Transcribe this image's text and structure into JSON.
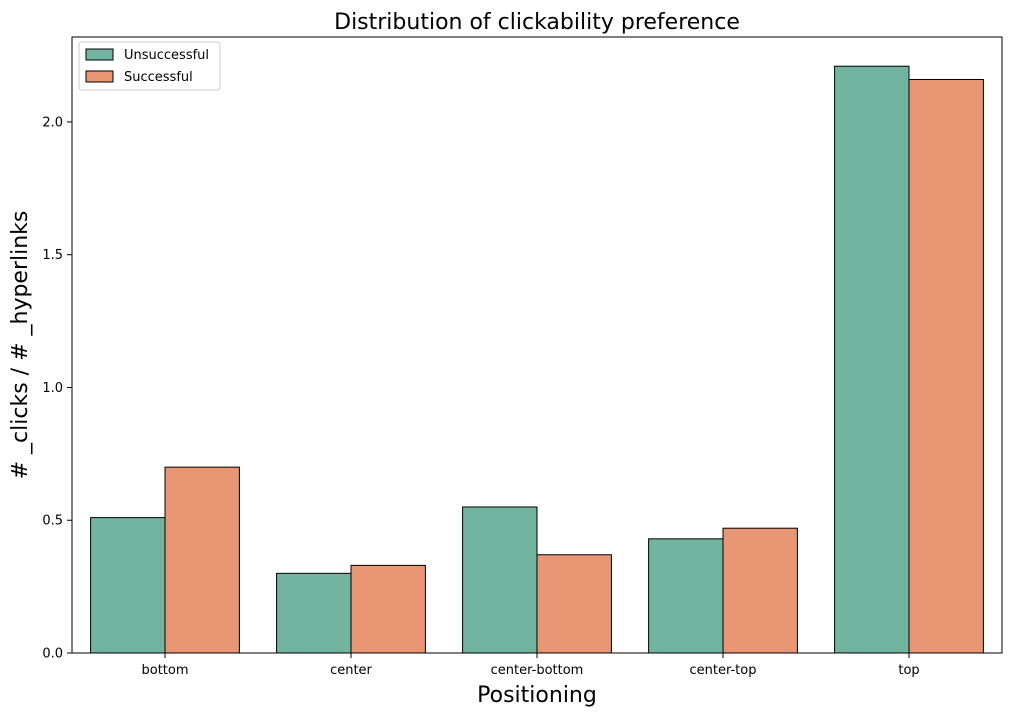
{
  "chart_data": {
    "type": "bar",
    "title": "Distribution of clickability preference",
    "xlabel": "Positioning",
    "ylabel": "# _clicks / # _hyperlinks",
    "categories": [
      "bottom",
      "center",
      "center-bottom",
      "center-top",
      "top"
    ],
    "series": [
      {
        "name": "Unsuccessful",
        "color": "#72b4a0",
        "values": [
          0.51,
          0.3,
          0.55,
          0.43,
          2.21
        ]
      },
      {
        "name": "Successful",
        "color": "#e99675",
        "values": [
          0.7,
          0.33,
          0.37,
          0.47,
          2.16
        ]
      }
    ],
    "ylim": [
      0,
      2.32
    ],
    "yticks": [
      "0.0",
      "0.5",
      "1.0",
      "1.5",
      "2.0"
    ],
    "ytick_values": [
      0,
      0.5,
      1.0,
      1.5,
      2.0
    ],
    "legend": {
      "placement": "top-left"
    },
    "grid": false
  }
}
